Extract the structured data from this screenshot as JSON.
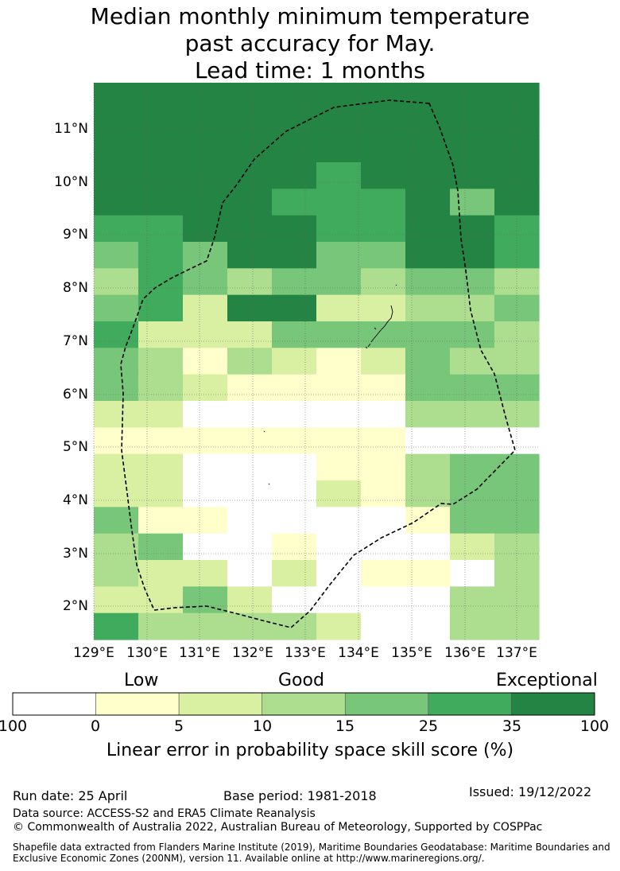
{
  "title_lines": [
    "Median monthly minimum temperature",
    "past accuracy for May.",
    "Lead time: 1 months"
  ],
  "lat_labels": [
    "11°N",
    "10°N",
    "9°N",
    "8°N",
    "7°N",
    "6°N",
    "5°N",
    "4°N",
    "3°N",
    "2°N"
  ],
  "lon_labels": [
    "129°E",
    "130°E",
    "131°E",
    "132°E",
    "133°E",
    "134°E",
    "135°E",
    "136°E",
    "137°E"
  ],
  "legend": {
    "category_low": "Low",
    "category_good": "Good",
    "category_exceptional": "Exceptional",
    "boundaries": [
      "100",
      "0",
      "5",
      "10",
      "15",
      "25",
      "35",
      "100"
    ],
    "colors": [
      "#ffffff",
      "#ffffcc",
      "#d9f0a3",
      "#addd8e",
      "#78c679",
      "#41ab5d",
      "#238443"
    ],
    "caption": "Linear error in probability space skill score (%)"
  },
  "grid": {
    "rows_top_to_bottom": [
      "6666666666",
      "6666666666",
      "6666666666",
      "6666656666",
      "6666555646",
      "5566655665",
      "4546644665",
      "3543443443",
      "4526622334",
      "5222444443",
      "4313212433",
      "4321111444",
      "2200000333",
      "1111111000",
      "2200011344",
      "2200021344",
      "4110000144",
      "3400100023",
      "3220201103",
      "2242000033",
      "5333320033"
    ]
  },
  "footer": {
    "run_date": "Run date: 25 April",
    "base_period": "Base period: 1981-2018",
    "issued": "Issued: 19/12/2022",
    "data_source": "Data source: ACCESS-S2 and ERA5 Climate Reanalysis",
    "copyright": "© Commonwealth of Australia 2022, Australian Bureau of Meteorology, Supported by COSPPac",
    "shapefile_line1": "Shapefile data extracted from Flanders Marine Institute (2019), Maritime Boundaries Geodatabase: Maritime Boundaries and",
    "shapefile_line2": "Exclusive Economic Zones (200NM), version 11. Available online at http://www.marineregions.org/."
  }
}
